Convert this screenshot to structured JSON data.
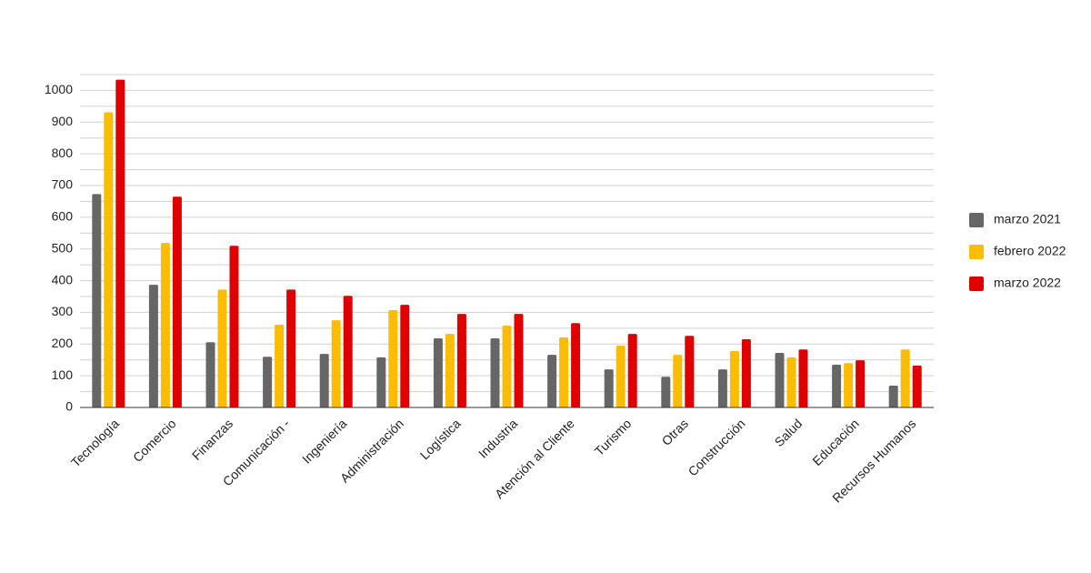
{
  "chart_data": {
    "type": "bar",
    "categories": [
      "Tecnología",
      "Comercio",
      "Finanzas",
      "Comunicación -",
      "Ingeniería",
      "Administración",
      "Logística",
      "Industria",
      "Atención al Cliente",
      "Turismo",
      "Otras",
      "Construcción",
      "Salud",
      "Educación",
      "Recursos Humanos"
    ],
    "series": [
      {
        "name": "marzo 2021",
        "color": "#666666",
        "values": [
          673,
          387,
          206,
          160,
          169,
          158,
          218,
          218,
          166,
          120,
          97,
          120,
          172,
          135,
          69
        ]
      },
      {
        "name": "febrero 2022",
        "color": "#fbbc04",
        "values": [
          931,
          519,
          372,
          261,
          275,
          307,
          232,
          258,
          221,
          195,
          166,
          178,
          158,
          140,
          183
        ]
      },
      {
        "name": "marzo 2022",
        "color": "#e00000",
        "values": [
          1034,
          665,
          510,
          372,
          352,
          324,
          295,
          295,
          266,
          232,
          226,
          215,
          183,
          149,
          132
        ]
      }
    ],
    "ylim": [
      0,
      1050
    ],
    "yticks": [
      0,
      100,
      200,
      300,
      400,
      500,
      600,
      700,
      800,
      900,
      1000
    ],
    "minor_yticks": [
      50,
      150,
      250,
      350,
      450,
      550,
      650,
      750,
      850,
      950,
      1050
    ],
    "grid": true,
    "legend": "right"
  }
}
